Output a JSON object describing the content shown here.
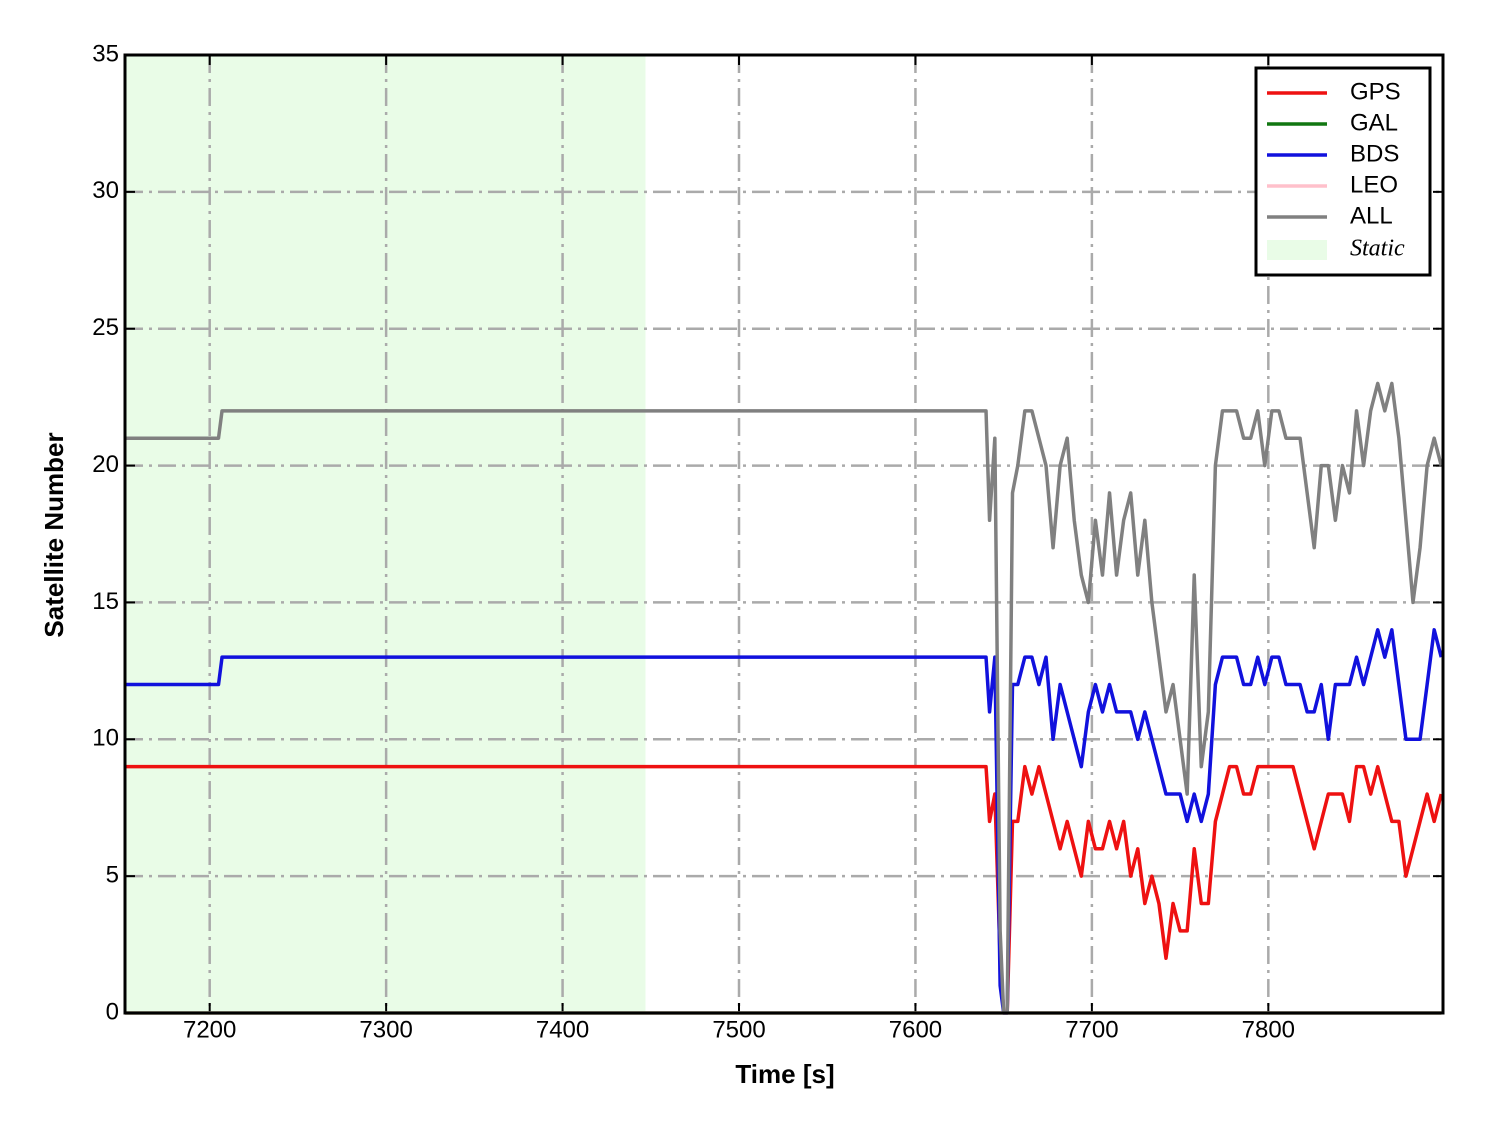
{
  "chart_data": {
    "type": "line",
    "xlabel": "Time [s]",
    "ylabel": "Satellite Number",
    "x": [
      7152,
      7205,
      7207,
      7640,
      7642,
      7645,
      7648,
      7650,
      7652,
      7655,
      7658,
      7662,
      7666,
      7670,
      7674,
      7678,
      7682,
      7686,
      7690,
      7694,
      7698,
      7702,
      7706,
      7710,
      7714,
      7718,
      7722,
      7726,
      7730,
      7734,
      7738,
      7742,
      7746,
      7750,
      7754,
      7758,
      7762,
      7766,
      7770,
      7774,
      7778,
      7782,
      7786,
      7790,
      7794,
      7798,
      7802,
      7806,
      7810,
      7814,
      7818,
      7822,
      7826,
      7830,
      7834,
      7838,
      7842,
      7846,
      7850,
      7854,
      7858,
      7862,
      7866,
      7870,
      7874,
      7878,
      7882,
      7886,
      7890,
      7894,
      7898
    ],
    "series": [
      {
        "name": "GPS",
        "color": "#ee1111",
        "values": [
          9,
          9,
          9,
          9,
          7,
          8,
          2,
          0,
          0,
          7,
          7,
          9,
          8,
          9,
          8,
          7,
          6,
          7,
          6,
          5,
          7,
          6,
          6,
          7,
          6,
          7,
          5,
          6,
          4,
          5,
          4,
          2,
          4,
          3,
          3,
          6,
          4,
          4,
          7,
          8,
          9,
          9,
          8,
          8,
          9,
          9,
          9,
          9,
          9,
          9,
          8,
          7,
          6,
          7,
          8,
          8,
          8,
          7,
          9,
          9,
          8,
          9,
          8,
          7,
          7,
          5,
          6,
          7,
          8,
          7,
          8
        ]
      },
      {
        "name": "GAL",
        "color": "#117711",
        "values": [
          0,
          0,
          0,
          0,
          0,
          0,
          0,
          0,
          0,
          0,
          0,
          0,
          0,
          0,
          0,
          0,
          0,
          0,
          0,
          0,
          0,
          0,
          0,
          0,
          0,
          0,
          0,
          0,
          0,
          0,
          0,
          0,
          0,
          0,
          0,
          0,
          0,
          0,
          0,
          0,
          0,
          0,
          0,
          0,
          0,
          0,
          0,
          0,
          0,
          0,
          0,
          0,
          0,
          0,
          0,
          0,
          0,
          0,
          0,
          0,
          0,
          0,
          0,
          0,
          0,
          0,
          0,
          0,
          0,
          0,
          0
        ]
      },
      {
        "name": "BDS",
        "color": "#1111dd",
        "values": [
          12,
          12,
          13,
          13,
          11,
          13,
          1,
          0,
          0,
          12,
          12,
          13,
          13,
          12,
          13,
          10,
          12,
          11,
          10,
          9,
          11,
          12,
          11,
          12,
          11,
          11,
          11,
          10,
          11,
          10,
          9,
          8,
          8,
          8,
          7,
          8,
          7,
          8,
          12,
          13,
          13,
          13,
          12,
          12,
          13,
          12,
          13,
          13,
          12,
          12,
          12,
          11,
          11,
          12,
          10,
          12,
          12,
          12,
          13,
          12,
          13,
          14,
          13,
          14,
          12,
          10,
          10,
          10,
          12,
          14,
          13
        ]
      },
      {
        "name": "LEO",
        "color": "#ffc0cb",
        "values": [
          0,
          0,
          0,
          0,
          0,
          0,
          0,
          0,
          0,
          0,
          0,
          0,
          0,
          0,
          0,
          0,
          0,
          0,
          0,
          0,
          0,
          0,
          0,
          0,
          0,
          0,
          0,
          0,
          0,
          0,
          0,
          0,
          0,
          0,
          0,
          0,
          0,
          0,
          0,
          0,
          0,
          0,
          0,
          0,
          0,
          0,
          0,
          0,
          0,
          0,
          0,
          0,
          0,
          0,
          0,
          0,
          0,
          0,
          0,
          0,
          0,
          0,
          0,
          0,
          0,
          0,
          0,
          0,
          0,
          0,
          0
        ]
      },
      {
        "name": "ALL",
        "color": "#808080",
        "values": [
          21,
          21,
          22,
          22,
          18,
          21,
          3,
          0,
          0,
          19,
          20,
          22,
          22,
          21,
          20,
          17,
          20,
          21,
          18,
          16,
          15,
          18,
          16,
          19,
          16,
          18,
          19,
          16,
          18,
          15,
          13,
          11,
          12,
          10,
          8,
          16,
          9,
          11,
          20,
          22,
          22,
          22,
          21,
          21,
          22,
          20,
          22,
          22,
          21,
          21,
          21,
          19,
          17,
          20,
          20,
          18,
          20,
          19,
          22,
          20,
          22,
          23,
          22,
          23,
          21,
          18,
          15,
          17,
          20,
          21,
          20
        ]
      }
    ],
    "shade": {
      "label": "Static",
      "range": [
        7152,
        7447
      ],
      "color": "#e9fce7"
    },
    "xlim": [
      7152,
      7899
    ],
    "ylim": [
      0,
      35
    ],
    "xticks": [
      7200,
      7300,
      7400,
      7500,
      7600,
      7700,
      7800
    ],
    "yticks": [
      0,
      5,
      10,
      15,
      20,
      25,
      30,
      35
    ],
    "grid": true,
    "legend": "upper right"
  }
}
